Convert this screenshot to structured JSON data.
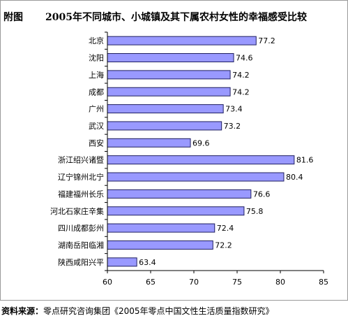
{
  "figure_tag": "附图",
  "source": {
    "label": "资料来源：",
    "text": "零点研究咨询集团《2005年零点中国文性生活质量指数研究》"
  },
  "colors": {
    "bar_fill": "#9999ff",
    "bar_stroke": "#1f1f5f",
    "axis": "#000000",
    "text": "#000000"
  },
  "chart_data": {
    "type": "bar",
    "orientation": "horizontal",
    "title": "2005年不同城市、小城镇及其下属农村女性的幸福感受比较",
    "xlabel": "",
    "ylabel": "",
    "xlim": [
      60,
      85
    ],
    "xticks": [
      "60",
      "65",
      "70",
      "75",
      "80",
      "85"
    ],
    "grid": false,
    "legend": "none",
    "categories": [
      "北京",
      "沈阳",
      "上海",
      "成都",
      "广州",
      "武汉",
      "西安",
      "浙江绍兴诸暨",
      "辽宁锦州北宁",
      "福建福州长乐",
      "河北石家庄辛集",
      "四川成都彭州",
      "湖南岳阳临湘",
      "陕西咸阳兴平"
    ],
    "values": [
      77.2,
      74.6,
      74.2,
      74.2,
      73.4,
      73.2,
      69.6,
      81.6,
      80.4,
      76.6,
      75.8,
      72.4,
      72.2,
      63.4
    ],
    "value_labels": [
      "77.2",
      "74.6",
      "74.2",
      "74.2",
      "73.4",
      "73.2",
      "69.6",
      "81.6",
      "80.4",
      "76.6",
      "75.8",
      "72.4",
      "72.2",
      "63.4"
    ]
  }
}
